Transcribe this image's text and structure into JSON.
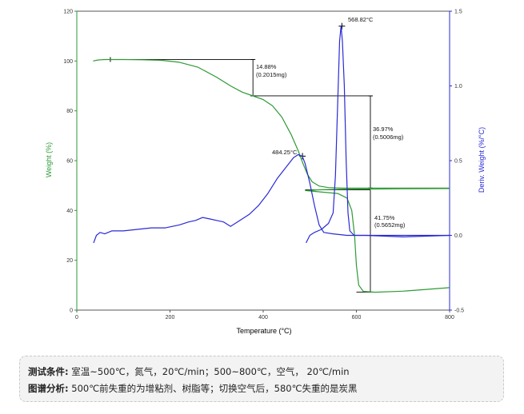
{
  "chart_data": {
    "type": "line",
    "xlabel": "Temperature (°C)",
    "ylabel_left": "Weight (%)",
    "ylabel_right": "Deriv. Weight (%/°C)",
    "xlim": [
      0,
      800
    ],
    "ylim_left": [
      0,
      120
    ],
    "ylim_right": [
      -0.5,
      1.5
    ],
    "xticks": [
      "0",
      "200",
      "400",
      "600",
      "800"
    ],
    "yticks_left": [
      "0",
      "20",
      "40",
      "60",
      "80",
      "100",
      "120"
    ],
    "yticks_right": [
      "-0.5",
      "0.0",
      "0.5",
      "1.0",
      "1.5"
    ],
    "colors": {
      "weight": "#2e9a35",
      "deriv": "#2a2ad6",
      "axis_right": "#2a2ad6",
      "axis_left": "#2e9a35"
    },
    "series": [
      {
        "axis": "left",
        "points": [
          [
            35,
            100
          ],
          [
            45,
            100.4
          ],
          [
            60,
            100.6
          ],
          [
            75,
            100.6
          ],
          [
            100,
            100.6
          ],
          [
            140,
            100.5
          ],
          [
            180,
            100.3
          ],
          [
            220,
            99.5
          ],
          [
            260,
            97.5
          ],
          [
            300,
            93.5
          ],
          [
            330,
            90
          ],
          [
            355,
            87.5
          ],
          [
            378,
            86
          ],
          [
            400,
            84.5
          ],
          [
            420,
            82
          ],
          [
            440,
            77.5
          ],
          [
            460,
            70.5
          ],
          [
            475,
            64
          ],
          [
            485,
            59
          ],
          [
            495,
            54.5
          ],
          [
            505,
            51.5
          ],
          [
            520,
            49.8
          ],
          [
            540,
            49.2
          ],
          [
            570,
            49
          ],
          [
            630,
            49
          ],
          [
            700,
            49
          ],
          [
            800,
            49
          ]
        ]
      },
      {
        "axis": "left",
        "points": [
          [
            490,
            48
          ],
          [
            520,
            48.3
          ],
          [
            560,
            48.5
          ],
          [
            600,
            48.6
          ],
          [
            640,
            48.6
          ],
          [
            700,
            48.7
          ],
          [
            800,
            48.8
          ]
        ]
      },
      {
        "axis": "left",
        "points": [
          [
            490,
            48
          ],
          [
            520,
            47.5
          ],
          [
            560,
            46.8
          ],
          [
            580,
            45
          ],
          [
            590,
            40
          ],
          [
            596,
            30
          ],
          [
            600,
            18
          ],
          [
            605,
            10
          ],
          [
            615,
            7.5
          ],
          [
            640,
            7.2
          ],
          [
            700,
            7.6
          ],
          [
            750,
            8.3
          ],
          [
            800,
            9
          ]
        ]
      },
      {
        "axis": "right",
        "points": [
          [
            36,
            -0.05
          ],
          [
            42,
            0.0
          ],
          [
            50,
            0.02
          ],
          [
            60,
            0.01
          ],
          [
            75,
            0.03
          ],
          [
            100,
            0.03
          ],
          [
            130,
            0.04
          ],
          [
            160,
            0.05
          ],
          [
            190,
            0.05
          ],
          [
            220,
            0.07
          ],
          [
            240,
            0.09
          ],
          [
            255,
            0.1
          ],
          [
            270,
            0.12
          ],
          [
            285,
            0.11
          ],
          [
            300,
            0.1
          ],
          [
            315,
            0.09
          ],
          [
            330,
            0.06
          ],
          [
            350,
            0.1
          ],
          [
            370,
            0.14
          ],
          [
            390,
            0.2
          ],
          [
            410,
            0.28
          ],
          [
            430,
            0.38
          ],
          [
            450,
            0.46
          ],
          [
            465,
            0.52
          ],
          [
            475,
            0.54
          ],
          [
            484,
            0.53
          ],
          [
            490,
            0.48
          ],
          [
            500,
            0.35
          ],
          [
            510,
            0.2
          ],
          [
            520,
            0.07
          ],
          [
            530,
            0.02
          ],
          [
            550,
            0.01
          ],
          [
            580,
            0.0
          ],
          [
            620,
            0.0
          ],
          [
            700,
            0.0
          ],
          [
            800,
            0.0
          ]
        ]
      },
      {
        "axis": "right",
        "points": [
          [
            492,
            -0.05
          ],
          [
            500,
            0.0
          ],
          [
            510,
            0.02
          ],
          [
            525,
            0.04
          ],
          [
            540,
            0.08
          ],
          [
            550,
            0.15
          ],
          [
            555,
            0.4
          ],
          [
            560,
            0.9
          ],
          [
            564,
            1.3
          ],
          [
            567,
            1.4
          ],
          [
            570,
            1.3
          ],
          [
            574,
            1.0
          ],
          [
            578,
            0.5
          ],
          [
            582,
            0.15
          ],
          [
            586,
            0.03
          ],
          [
            595,
            0.0
          ],
          [
            620,
            0.0
          ],
          [
            700,
            -0.01
          ],
          [
            800,
            0.0
          ]
        ]
      }
    ],
    "annotations": {
      "weight_loss_1": {
        "percent": "14.88%",
        "mass": "(0.2015mg)"
      },
      "weight_loss_2": {
        "percent": "36.97%",
        "mass": "(0.5006mg)"
      },
      "weight_loss_3": {
        "percent": "41.75%",
        "mass": "(0.5652mg)"
      },
      "peak_1": {
        "label": "484.25°C",
        "x": 484.25,
        "y": 0.53
      },
      "peak_2": {
        "label": "568.82°C",
        "x": 568.82,
        "y": 1.4
      }
    }
  },
  "note": {
    "test_conditions_label": "测试条件:",
    "test_conditions_text": "室温~500℃，氮气，20℃/min；500~800℃，空气， 20℃/min",
    "analysis_label": "图谱分析:",
    "analysis_text": "500℃前失重的为增粘剂、树脂等；切换空气后，580℃失重的是炭黑"
  }
}
